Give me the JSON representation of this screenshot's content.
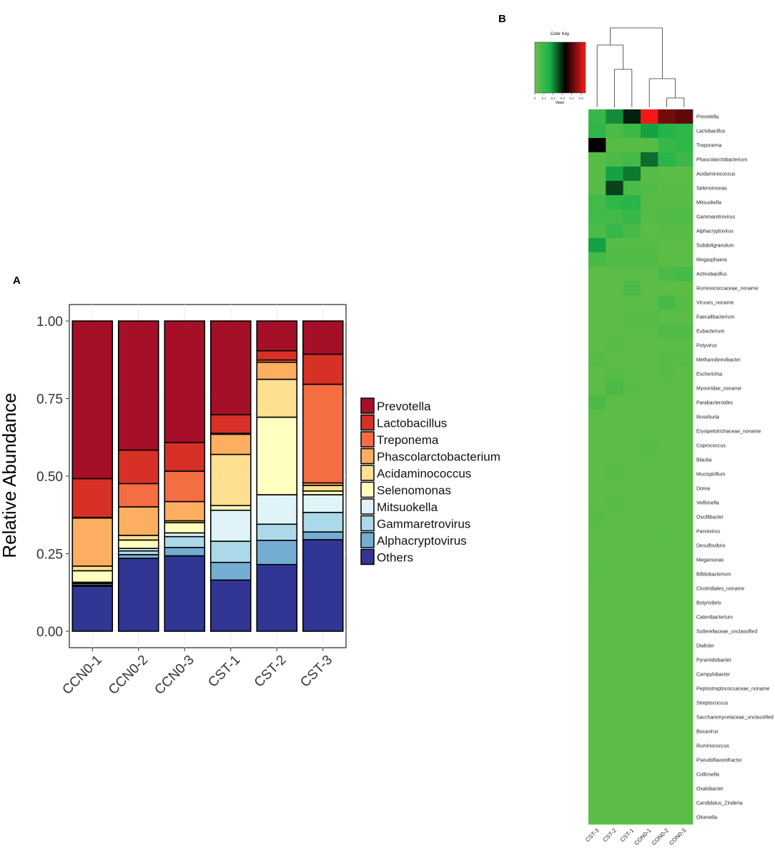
{
  "chart_data": [
    {
      "panel_label": "A",
      "type": "bar",
      "stacked": true,
      "ylabel": "Relative Abundance",
      "xlabel": "",
      "ylim": [
        0,
        1
      ],
      "y_ticks": [
        "0.00",
        "0.25",
        "0.50",
        "0.75",
        "1.00"
      ],
      "categories": [
        "CCN0-1",
        "CCN0-2",
        "CCN0-3",
        "CST-1",
        "CST-2",
        "CST-3"
      ],
      "legend_position": "right",
      "series": [
        {
          "name": "Others",
          "color": "#313695",
          "values": [
            0.145,
            0.235,
            0.243,
            0.165,
            0.215,
            0.295
          ]
        },
        {
          "name": "Alphacryptovirus",
          "color": "#74add1",
          "values": [
            0.004,
            0.012,
            0.027,
            0.057,
            0.078,
            0.025
          ]
        },
        {
          "name": "Gammaretrovirus",
          "color": "#abd9e9",
          "values": [
            0.005,
            0.012,
            0.035,
            0.068,
            0.052,
            0.063
          ]
        },
        {
          "name": "Mitsuokella",
          "color": "#e0f3f8",
          "values": [
            0.004,
            0.008,
            0.012,
            0.1,
            0.095,
            0.057
          ]
        },
        {
          "name": "Selenomonas",
          "color": "#ffffbf",
          "values": [
            0.037,
            0.027,
            0.033,
            0.015,
            0.25,
            0.012
          ]
        },
        {
          "name": "Acidaminococcus",
          "color": "#fee090",
          "values": [
            0.015,
            0.015,
            0.006,
            0.165,
            0.122,
            0.018
          ]
        },
        {
          "name": "Phascolarctobacterium",
          "color": "#fdae61",
          "values": [
            0.155,
            0.092,
            0.062,
            0.065,
            0.055,
            0.008
          ]
        },
        {
          "name": "Treponema",
          "color": "#f46d43",
          "values": [
            0.002,
            0.075,
            0.098,
            0.003,
            0.007,
            0.318
          ]
        },
        {
          "name": "Lactobacillus",
          "color": "#d73027",
          "values": [
            0.125,
            0.108,
            0.092,
            0.06,
            0.03,
            0.097
          ]
        },
        {
          "name": "Prevotella",
          "color": "#a50f27",
          "values": [
            0.508,
            0.416,
            0.392,
            0.302,
            0.096,
            0.107
          ]
        }
      ],
      "legend_order": [
        "Prevotella",
        "Lactobacillus",
        "Treponema",
        "Phascolarctobacterium",
        "Acidaminococcus",
        "Selenomonas",
        "Mitsuokella",
        "Gammaretrovirus",
        "Alphacryptovirus",
        "Others"
      ]
    },
    {
      "panel_label": "B",
      "type": "heatmap",
      "color_key": {
        "title": "Color Key",
        "xlabel": "Value",
        "ticks": [
          "0",
          "0.1",
          "0.2",
          "0.3",
          "0.4",
          "0.5"
        ],
        "range": [
          0,
          0.55
        ],
        "colors": [
          "#6abf45",
          "#17b24b",
          "#000000",
          "#ff1a1a"
        ]
      },
      "columns": [
        "CST-3",
        "CST-2",
        "CST-1",
        "CON0-1",
        "CON0-2",
        "CON0-3"
      ],
      "rows": [
        "Prevotella",
        "Lactobacillus",
        "Treponema",
        "Phascolarctobacterium",
        "Acidaminococcus",
        "Selenomonas",
        "Mitsuokella",
        "Gammaretrovirus",
        "Alphacryptovirus",
        "Subdoligranulum",
        "Megasphaera",
        "Actinobacillus",
        "Ruminococcaceae_noname",
        "Viruses_noname",
        "Faecalibacterium",
        "Eubacterium",
        "Potyvirus",
        "Methanobrevibacter",
        "Escherichia",
        "Myoviridae_noname",
        "Parabacteroides",
        "Roseburia",
        "Erysipelotrichaceae_noname",
        "Coprococcus",
        "Blautia",
        "Mucispirillum",
        "Dorea",
        "Veillonella",
        "Oscillibacter",
        "Parvovirus",
        "Desulfovibrio",
        "Megamonas",
        "Bifidobacterium",
        "Clostridiales_noname",
        "Butyrivibrio",
        "Catenibacterium",
        "Sutterellaceae_unclassified",
        "Dialister",
        "Pyramidobacter",
        "Campylobacter",
        "Peptostreptococcaceae_noname",
        "Streptococcus",
        "Saccharomycetaceae_unclassified",
        "Bocavirus",
        "Ruminococcus",
        "Pseudoflavonifractor",
        "Collinsella",
        "Oxalobacter",
        "Candidatus_Zinderia",
        "Olsenella"
      ],
      "values": [
        [
          0.1,
          0.2,
          0.3,
          0.54,
          0.43,
          0.41
        ],
        [
          0.12,
          0.06,
          0.09,
          0.18,
          0.14,
          0.12
        ],
        [
          0.33,
          0.04,
          0.04,
          0.04,
          0.1,
          0.12
        ],
        [
          0.04,
          0.06,
          0.08,
          0.23,
          0.13,
          0.09
        ],
        [
          0.04,
          0.18,
          0.22,
          0.04,
          0.03,
          0.03
        ],
        [
          0.04,
          0.27,
          0.06,
          0.05,
          0.04,
          0.04
        ],
        [
          0.08,
          0.12,
          0.13,
          0.04,
          0.04,
          0.04
        ],
        [
          0.08,
          0.08,
          0.1,
          0.04,
          0.05,
          0.05
        ],
        [
          0.06,
          0.1,
          0.07,
          0.03,
          0.04,
          0.04
        ],
        [
          0.18,
          0.04,
          0.04,
          0.04,
          0.03,
          0.03
        ],
        [
          0.07,
          0.05,
          0.05,
          0.05,
          0.03,
          0.03
        ],
        [
          0.03,
          0.03,
          0.03,
          0.03,
          0.06,
          0.07
        ],
        [
          0.03,
          0.03,
          0.06,
          0.03,
          0.03,
          0.03
        ],
        [
          0.03,
          0.03,
          0.03,
          0.03,
          0.07,
          0.04
        ],
        [
          0.03,
          0.03,
          0.04,
          0.04,
          0.03,
          0.03
        ],
        [
          0.03,
          0.03,
          0.03,
          0.03,
          0.05,
          0.05
        ],
        [
          0.03,
          0.04,
          0.03,
          0.03,
          0.03,
          0.03
        ],
        [
          0.04,
          0.03,
          0.03,
          0.03,
          0.04,
          0.04
        ],
        [
          0.03,
          0.04,
          0.03,
          0.03,
          0.04,
          0.03
        ],
        [
          0.03,
          0.06,
          0.04,
          0.03,
          0.03,
          0.03
        ],
        [
          0.06,
          0.03,
          0.03,
          0.03,
          0.03,
          0.03
        ],
        [
          0.03,
          0.03,
          0.03,
          0.03,
          0.03,
          0.03
        ],
        [
          0.03,
          0.03,
          0.03,
          0.03,
          0.03,
          0.03
        ],
        [
          0.03,
          0.03,
          0.03,
          0.04,
          0.03,
          0.03
        ],
        [
          0.03,
          0.03,
          0.03,
          0.03,
          0.03,
          0.03
        ],
        [
          0.03,
          0.04,
          0.03,
          0.03,
          0.03,
          0.03
        ],
        [
          0.03,
          0.03,
          0.03,
          0.03,
          0.03,
          0.03
        ],
        [
          0.03,
          0.04,
          0.03,
          0.03,
          0.03,
          0.03
        ],
        [
          0.04,
          0.03,
          0.03,
          0.03,
          0.03,
          0.03
        ],
        [
          0.03,
          0.03,
          0.03,
          0.03,
          0.035,
          0.03
        ],
        [
          0.03,
          0.03,
          0.03,
          0.03,
          0.03,
          0.03
        ],
        [
          0.03,
          0.03,
          0.03,
          0.03,
          0.03,
          0.03
        ],
        [
          0.035,
          0.03,
          0.03,
          0.03,
          0.03,
          0.03
        ],
        [
          0.03,
          0.03,
          0.03,
          0.03,
          0.03,
          0.03
        ],
        [
          0.03,
          0.03,
          0.03,
          0.03,
          0.03,
          0.03
        ],
        [
          0.03,
          0.03,
          0.03,
          0.03,
          0.03,
          0.03
        ],
        [
          0.03,
          0.03,
          0.03,
          0.03,
          0.03,
          0.03
        ],
        [
          0.03,
          0.03,
          0.03,
          0.03,
          0.03,
          0.03
        ],
        [
          0.03,
          0.03,
          0.03,
          0.03,
          0.03,
          0.03
        ],
        [
          0.03,
          0.03,
          0.03,
          0.03,
          0.03,
          0.03
        ],
        [
          0.03,
          0.03,
          0.03,
          0.03,
          0.03,
          0.03
        ],
        [
          0.03,
          0.03,
          0.03,
          0.03,
          0.03,
          0.03
        ],
        [
          0.03,
          0.03,
          0.03,
          0.03,
          0.03,
          0.03
        ],
        [
          0.03,
          0.03,
          0.03,
          0.03,
          0.03,
          0.03
        ],
        [
          0.03,
          0.03,
          0.03,
          0.03,
          0.03,
          0.03
        ],
        [
          0.03,
          0.03,
          0.03,
          0.03,
          0.03,
          0.03
        ],
        [
          0.03,
          0.03,
          0.03,
          0.03,
          0.03,
          0.03
        ],
        [
          0.03,
          0.03,
          0.03,
          0.03,
          0.03,
          0.03
        ],
        [
          0.03,
          0.03,
          0.03,
          0.03,
          0.03,
          0.03
        ],
        [
          0.03,
          0.03,
          0.03,
          0.03,
          0.03,
          0.03
        ]
      ],
      "column_dendrogram": true
    }
  ]
}
